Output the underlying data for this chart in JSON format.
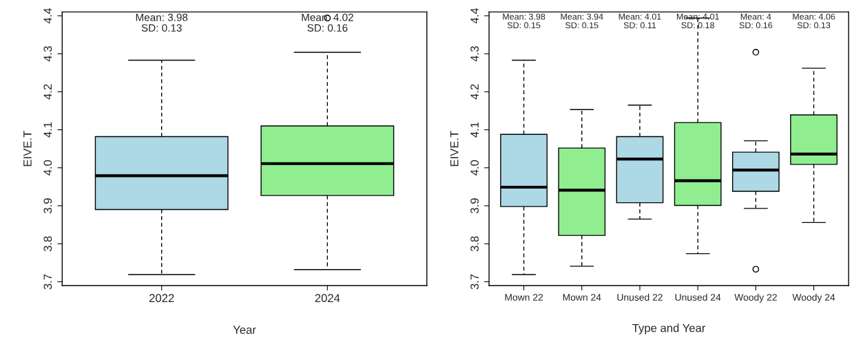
{
  "chart_data": [
    {
      "type": "box",
      "xlabel": "Year",
      "ylabel": "EIVE.T",
      "categories": [
        "2022",
        "2024"
      ],
      "colors": [
        "#add8e6",
        "#90ee90"
      ],
      "boxes": [
        {
          "low": 3.719,
          "q1": 3.89,
          "median": 3.979,
          "q3": 4.082,
          "high": 4.283
        },
        {
          "low": 3.732,
          "q1": 3.927,
          "median": 4.011,
          "q3": 4.11,
          "high": 4.304,
          "outliers": [
            4.394
          ]
        }
      ],
      "ylim": [
        3.69,
        4.41
      ],
      "yticks": [
        3.7,
        3.8,
        3.9,
        {
          "value": 4.0,
          "label": "4.0"
        },
        4.1,
        4.2,
        4.3,
        4.4
      ],
      "grid": false,
      "annotations": [
        "Mean: 3.98\nSD: 0.13",
        "Mean: 4.02\nSD: 0.16"
      ]
    },
    {
      "type": "box",
      "xlabel": "Type and Year",
      "ylabel": "EIVE.T",
      "categories": [
        "Mown 22",
        "Mown 24",
        "Unused 22",
        "Unused 24",
        "Woody 22",
        "Woody 24"
      ],
      "colors": [
        "#add8e6",
        "#90ee90",
        "#add8e6",
        "#90ee90",
        "#add8e6",
        "#90ee90"
      ],
      "boxes": [
        {
          "low": 3.719,
          "q1": 3.898,
          "median": 3.949,
          "q3": 4.088,
          "high": 4.283
        },
        {
          "low": 3.741,
          "q1": 3.822,
          "median": 3.941,
          "q3": 4.052,
          "high": 4.153
        },
        {
          "low": 3.865,
          "q1": 3.908,
          "median": 4.023,
          "q3": 4.082,
          "high": 4.165
        },
        {
          "low": 3.774,
          "q1": 3.901,
          "median": 3.966,
          "q3": 4.119,
          "high": 4.394
        },
        {
          "low": 3.893,
          "q1": 3.938,
          "median": 3.994,
          "q3": 4.041,
          "high": 4.071,
          "outliers": [
            4.304,
            3.733
          ]
        },
        {
          "low": 3.856,
          "q1": 4.009,
          "median": 4.036,
          "q3": 4.139,
          "high": 4.262
        }
      ],
      "ylim": [
        3.69,
        4.41
      ],
      "yticks": [
        3.7,
        3.8,
        3.9,
        {
          "value": 4.0,
          "label": "4.0"
        },
        4.1,
        4.2,
        4.3,
        4.4
      ],
      "grid": false,
      "annotations": [
        "Mean: 3.98\nSD: 0.15",
        "Mean: 3.94\nSD: 0.15",
        "Mean: 4.01\nSD: 0.11",
        "Mean: 4.01\nSD: 0.18",
        "Mean: 4\nSD: 0.16",
        "Mean: 4.06\nSD: 0.13"
      ]
    }
  ]
}
